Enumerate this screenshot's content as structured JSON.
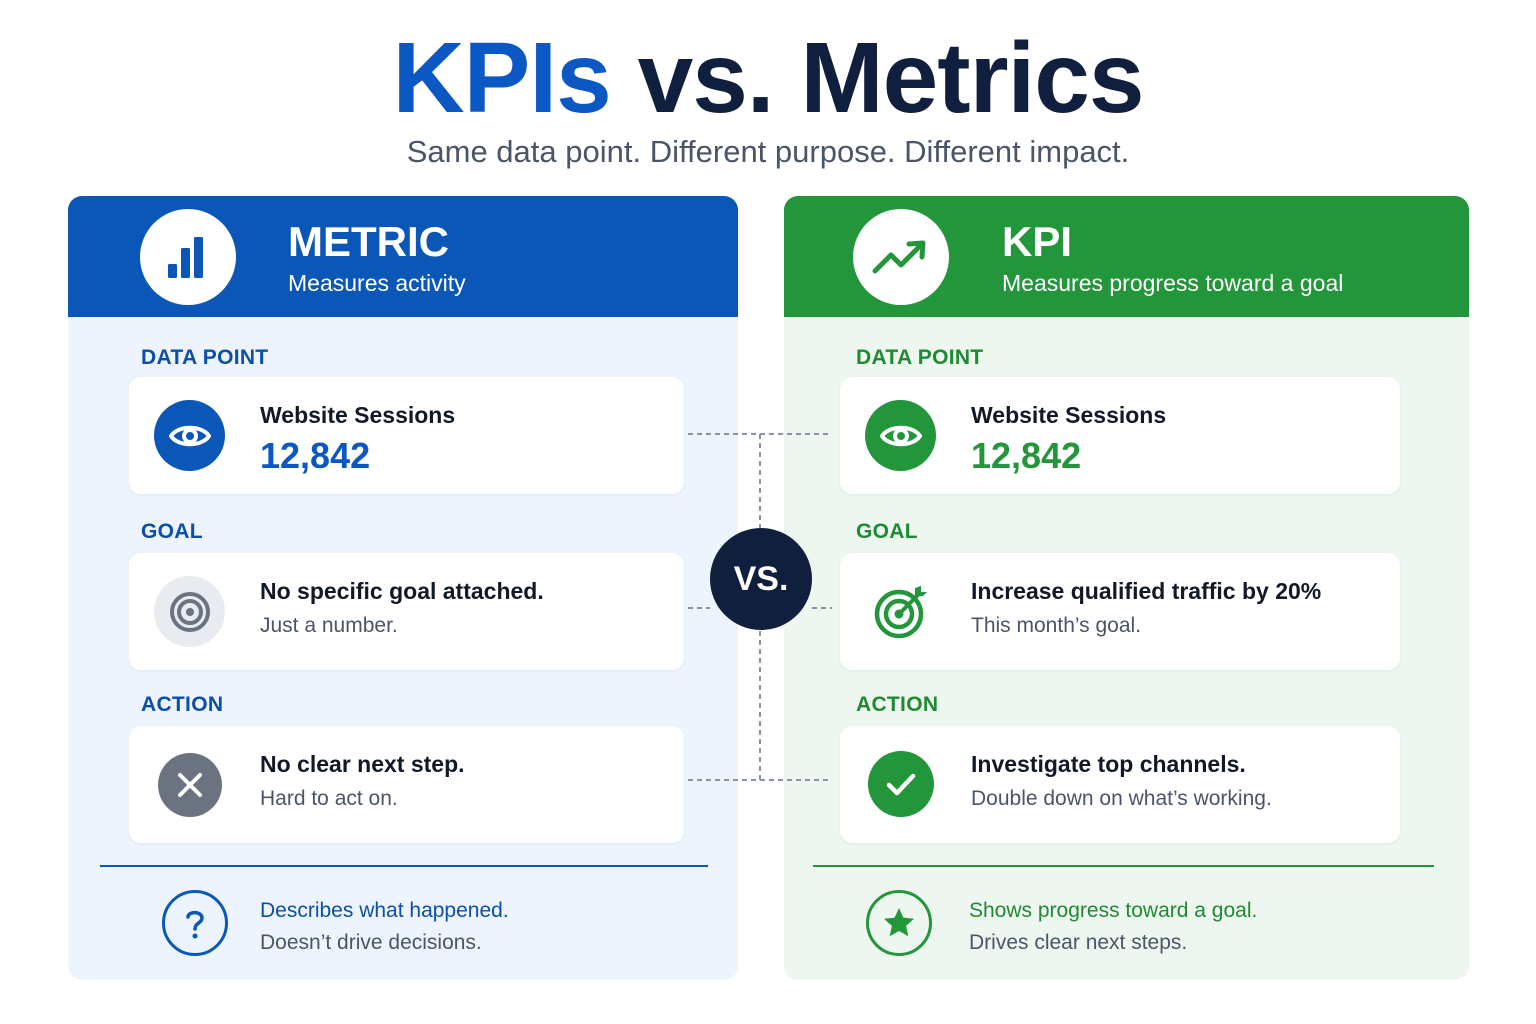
{
  "header": {
    "title_kpis": "KPIs",
    "title_rest": "vs. Metrics",
    "subtitle": "Same data point. Different purpose. Different impact."
  },
  "vs_label": "VS.",
  "metric": {
    "title": "METRIC",
    "subtitle": "Measures activity",
    "header_icon": "bar-chart-icon",
    "color": "#0b57b8",
    "data_point": {
      "label": "DATA POINT",
      "icon": "eye-icon",
      "title": "Website Sessions",
      "value": "12,842"
    },
    "goal": {
      "label": "GOAL",
      "icon": "target-icon",
      "title": "No specific goal attached.",
      "sub": "Just a number."
    },
    "action": {
      "label": "ACTION",
      "icon": "x-icon",
      "title": "No clear next step.",
      "sub": "Hard to act on."
    },
    "footer": {
      "icon": "question-icon",
      "title": "Describes what happened.",
      "sub": "Doesn’t drive decisions."
    }
  },
  "kpi": {
    "title": "KPI",
    "subtitle": "Measures progress toward a goal",
    "header_icon": "trend-up-icon",
    "color": "#23953a",
    "data_point": {
      "label": "DATA POINT",
      "icon": "eye-icon",
      "title": "Website Sessions",
      "value": "12,842"
    },
    "goal": {
      "label": "GOAL",
      "icon": "target-arrow-icon",
      "title": "Increase qualified traffic by 20%",
      "sub": "This month’s goal."
    },
    "action": {
      "label": "ACTION",
      "icon": "check-icon",
      "title": "Investigate top channels.",
      "sub": "Double down on what’s working."
    },
    "footer": {
      "icon": "star-icon",
      "title": "Shows progress toward a goal.",
      "sub": "Drives clear next steps."
    }
  }
}
